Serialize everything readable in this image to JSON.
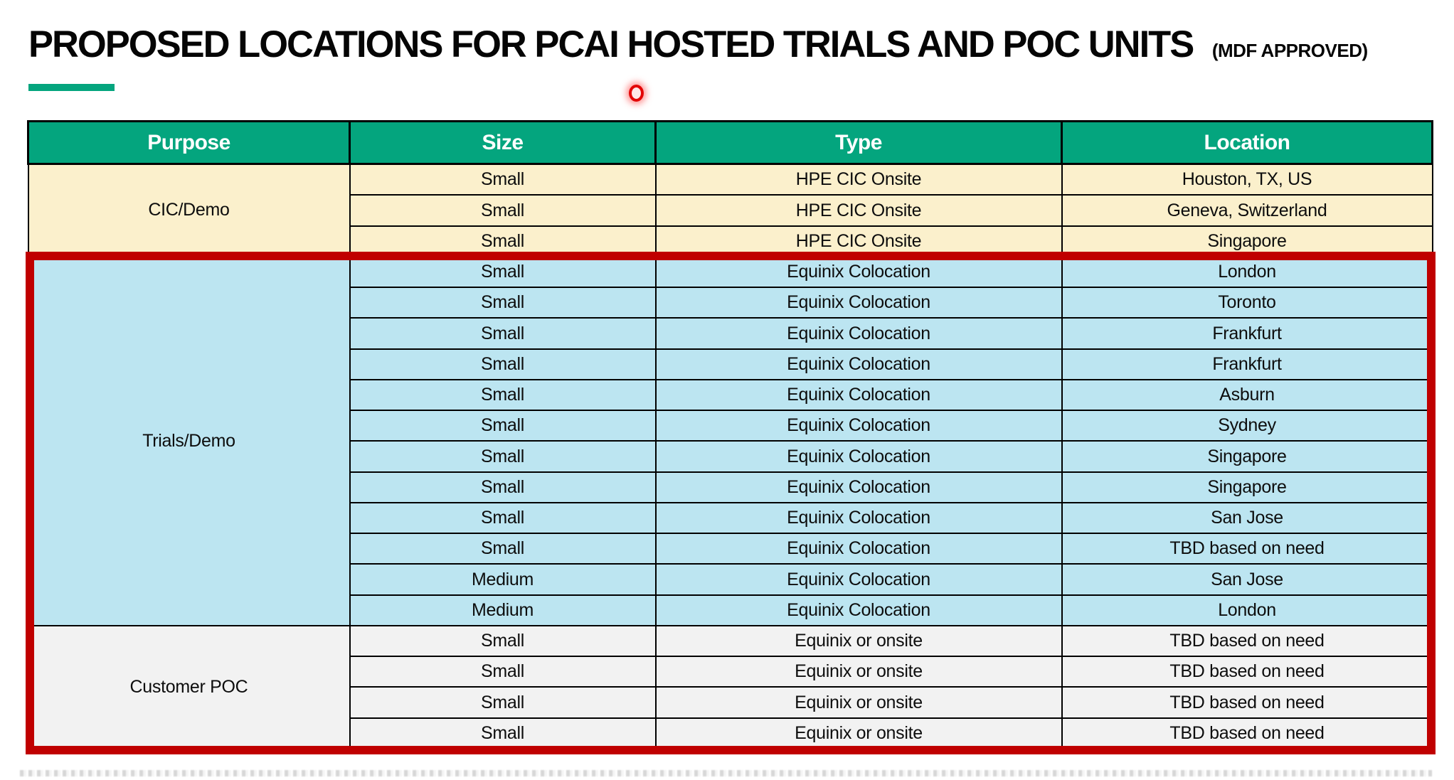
{
  "header": {
    "title": "PROPOSED LOCATIONS FOR PCAI HOSTED TRIALS AND POC UNITS",
    "title_suffix": "(MDF APPROVED)"
  },
  "colors": {
    "header_green": "#04A57E",
    "accent_bar_green": "#04A57E",
    "cic_demo_cream": "#FBF0CC",
    "trials_demo_blue": "#BCE5F1",
    "customer_poc_gray": "#F2F2F2",
    "highlight_border_red": "#C00000",
    "laser_dot_red": "#E30505",
    "header_text": "#FFFFFF",
    "body_text": "#0D0D0D"
  },
  "table": {
    "columns": [
      "Purpose",
      "Size",
      "Type",
      "Location"
    ],
    "sections": [
      {
        "purpose": "CIC/Demo",
        "bg": "cream",
        "highlighted": false,
        "rows": [
          [
            "Small",
            "HPE CIC Onsite",
            "Houston, TX, US"
          ],
          [
            "Small",
            "HPE CIC Onsite",
            "Geneva, Switzerland"
          ],
          [
            "Small",
            "HPE CIC Onsite",
            "Singapore"
          ]
        ]
      },
      {
        "purpose": "Trials/Demo",
        "bg": "blue",
        "highlighted": true,
        "rows": [
          [
            "Small",
            "Equinix Colocation",
            "London"
          ],
          [
            "Small",
            "Equinix Colocation",
            "Toronto"
          ],
          [
            "Small",
            "Equinix Colocation",
            "Frankfurt"
          ],
          [
            "Small",
            "Equinix Colocation",
            "Frankfurt"
          ],
          [
            "Small",
            "Equinix Colocation",
            "Asburn"
          ],
          [
            "Small",
            "Equinix Colocation",
            "Sydney"
          ],
          [
            "Small",
            "Equinix Colocation",
            "Singapore"
          ],
          [
            "Small",
            "Equinix Colocation",
            "Singapore"
          ],
          [
            "Small",
            "Equinix Colocation",
            "San Jose"
          ],
          [
            "Small",
            "Equinix Colocation",
            "TBD based on need"
          ],
          [
            "Medium",
            "Equinix Colocation",
            "San Jose"
          ],
          [
            "Medium",
            "Equinix Colocation",
            "London"
          ]
        ]
      },
      {
        "purpose": "Customer POC",
        "bg": "gray",
        "highlighted": true,
        "rows": [
          [
            "Small",
            "Equinix or onsite",
            "TBD based on need"
          ],
          [
            "Small",
            "Equinix or onsite",
            "TBD based on need"
          ],
          [
            "Small",
            "Equinix or onsite",
            "TBD based on need"
          ],
          [
            "Small",
            "Equinix or onsite",
            "TBD based on need"
          ]
        ]
      }
    ]
  }
}
